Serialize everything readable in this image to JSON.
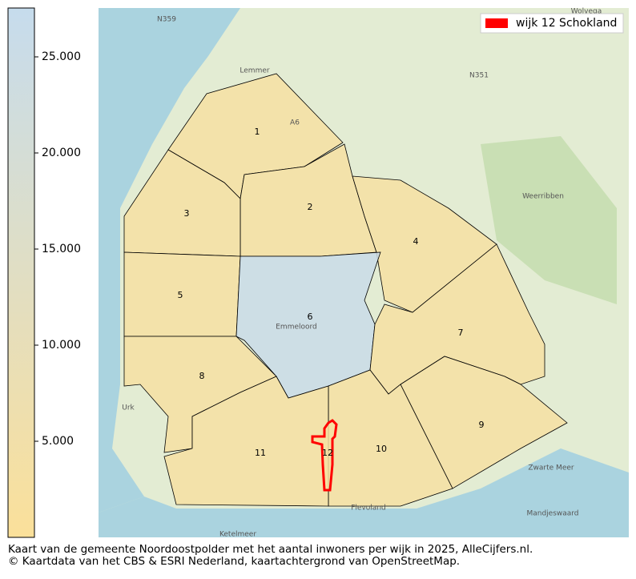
{
  "colorbar": {
    "range": [
      0,
      27500
    ],
    "ticks": [
      {
        "value": 5000,
        "label": "5.000"
      },
      {
        "value": 10000,
        "label": "10.000"
      },
      {
        "value": 15000,
        "label": "15.000"
      },
      {
        "value": 20000,
        "label": "20.000"
      },
      {
        "value": 25000,
        "label": "25.000"
      }
    ],
    "colors": [
      "#fbe09a",
      "#c6dced"
    ]
  },
  "legend": {
    "label": "wijk 12 Schokland",
    "color": "#ff0000"
  },
  "districts": [
    {
      "label": "1",
      "value": 2500
    },
    {
      "label": "2",
      "value": 2500
    },
    {
      "label": "3",
      "value": 2500
    },
    {
      "label": "4",
      "value": 2500
    },
    {
      "label": "5",
      "value": 2500
    },
    {
      "label": "6",
      "value": 26000
    },
    {
      "label": "7",
      "value": 2500
    },
    {
      "label": "8",
      "value": 2500
    },
    {
      "label": "9",
      "value": 2500
    },
    {
      "label": "10",
      "value": 2500
    },
    {
      "label": "11",
      "value": 2500
    },
    {
      "label": "12",
      "value": 2500
    }
  ],
  "map_labels": [
    "N359",
    "Lemmer",
    "Wolvega",
    "N351",
    "A6",
    "Weerribben",
    "Urk",
    "Emmeloord",
    "Ketelmeer",
    "Zwarte Meer",
    "Mandjeswaard",
    "Flevoland"
  ],
  "caption": [
    "Kaart van de gemeente Noordoostpolder met het aantal inwoners per wijk in 2025, AlleCijfers.nl.",
    "© Kaartdata van het CBS & ESRI Nederland, kaartachtergrond van OpenStreetMap."
  ]
}
